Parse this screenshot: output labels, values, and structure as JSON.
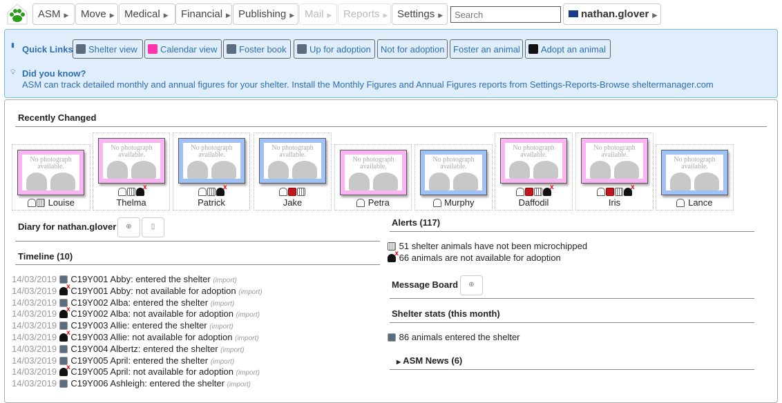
{
  "nav": {
    "items": [
      {
        "label": "ASM",
        "enabled": true
      },
      {
        "label": "Move",
        "enabled": true
      },
      {
        "label": "Medical",
        "enabled": true
      },
      {
        "label": "Financial",
        "enabled": true
      },
      {
        "label": "Publishing",
        "enabled": true
      },
      {
        "label": "Mail",
        "enabled": false
      },
      {
        "label": "Reports",
        "enabled": false
      },
      {
        "label": "Settings",
        "enabled": true
      }
    ],
    "search_placeholder": "Search",
    "user": "nathan.glover",
    "logo_color": "#2a9d18"
  },
  "quick_links": {
    "title": "Quick Links",
    "links": [
      "Shelter view",
      "Calendar view",
      "Foster book",
      "Up for adoption",
      "Not for adoption",
      "Foster an animal",
      "Adopt an animal"
    ],
    "did_you_know_title": "Did you know?",
    "did_you_know_text": "ASM can track detailed monthly and annual figures for your shelter. Install the Monthly Figures and Annual Figures reports from Settings-Reports-Browse sheltermanager.com"
  },
  "recently_changed": {
    "title": "Recently Changed",
    "no_photo": "No photograph available.",
    "animals": [
      {
        "name": "Louise",
        "sex": "female",
        "icons": [
          "house",
          "microchip"
        ]
      },
      {
        "name": "Thelma",
        "sex": "female",
        "icons": [
          "house",
          "microchip",
          "not-for-adoption"
        ]
      },
      {
        "name": "Patrick",
        "sex": "male",
        "icons": [
          "house",
          "microchip",
          "not-for-adoption"
        ]
      },
      {
        "name": "Jake",
        "sex": "male",
        "icons": [
          "house",
          "medical",
          "microchip"
        ]
      },
      {
        "name": "Petra",
        "sex": "female",
        "icons": [
          "house"
        ]
      },
      {
        "name": "Murphy",
        "sex": "male",
        "icons": [
          "house"
        ]
      },
      {
        "name": "Daffodil",
        "sex": "female",
        "icons": [
          "house",
          "medical",
          "microchip",
          "not-for-adoption"
        ]
      },
      {
        "name": "Iris",
        "sex": "female",
        "icons": [
          "house",
          "medical",
          "microchip",
          "not-for-adoption"
        ]
      },
      {
        "name": "Lance",
        "sex": "male",
        "icons": [
          "house"
        ]
      }
    ]
  },
  "diary": {
    "title": "Diary for nathan.glover"
  },
  "timeline": {
    "title": "Timeline (10)",
    "entries": [
      {
        "date": "14/03/2019",
        "icon": "entered",
        "text": "C19Y001 Abby: entered the shelter",
        "by": "(import)"
      },
      {
        "date": "14/03/2019",
        "icon": "not-for-adoption",
        "text": "C19Y001 Abby: not available for adoption",
        "by": "(import)"
      },
      {
        "date": "14/03/2019",
        "icon": "entered",
        "text": "C19Y002 Alba: entered the shelter",
        "by": "(import)"
      },
      {
        "date": "14/03/2019",
        "icon": "not-for-adoption",
        "text": "C19Y002 Alba: not available for adoption",
        "by": "(import)"
      },
      {
        "date": "14/03/2019",
        "icon": "entered",
        "text": "C19Y003 Allie: entered the shelter",
        "by": "(import)"
      },
      {
        "date": "14/03/2019",
        "icon": "not-for-adoption",
        "text": "C19Y003 Allie: not available for adoption",
        "by": "(import)"
      },
      {
        "date": "14/03/2019",
        "icon": "entered",
        "text": "C19Y004 Albertz: entered the shelter",
        "by": "(import)"
      },
      {
        "date": "14/03/2019",
        "icon": "entered",
        "text": "C19Y005 April: entered the shelter",
        "by": "(import)"
      },
      {
        "date": "14/03/2019",
        "icon": "not-for-adoption",
        "text": "C19Y005 April: not available for adoption",
        "by": "(import)"
      },
      {
        "date": "14/03/2019",
        "icon": "entered",
        "text": "C19Y006 Ashleigh: entered the shelter",
        "by": "(import)"
      }
    ]
  },
  "alerts": {
    "title": "Alerts (117)",
    "items": [
      {
        "icon": "microchip",
        "text": "51 shelter animals have not been microchipped"
      },
      {
        "icon": "not-for-adoption",
        "text": "66 animals are not available for adoption"
      }
    ]
  },
  "message_board": {
    "title": "Message Board"
  },
  "shelter_stats": {
    "title": "Shelter stats (this month)",
    "items": [
      {
        "icon": "entered",
        "text": "86 animals entered the shelter"
      }
    ]
  },
  "asm_news": {
    "title": "ASM News (6)"
  }
}
